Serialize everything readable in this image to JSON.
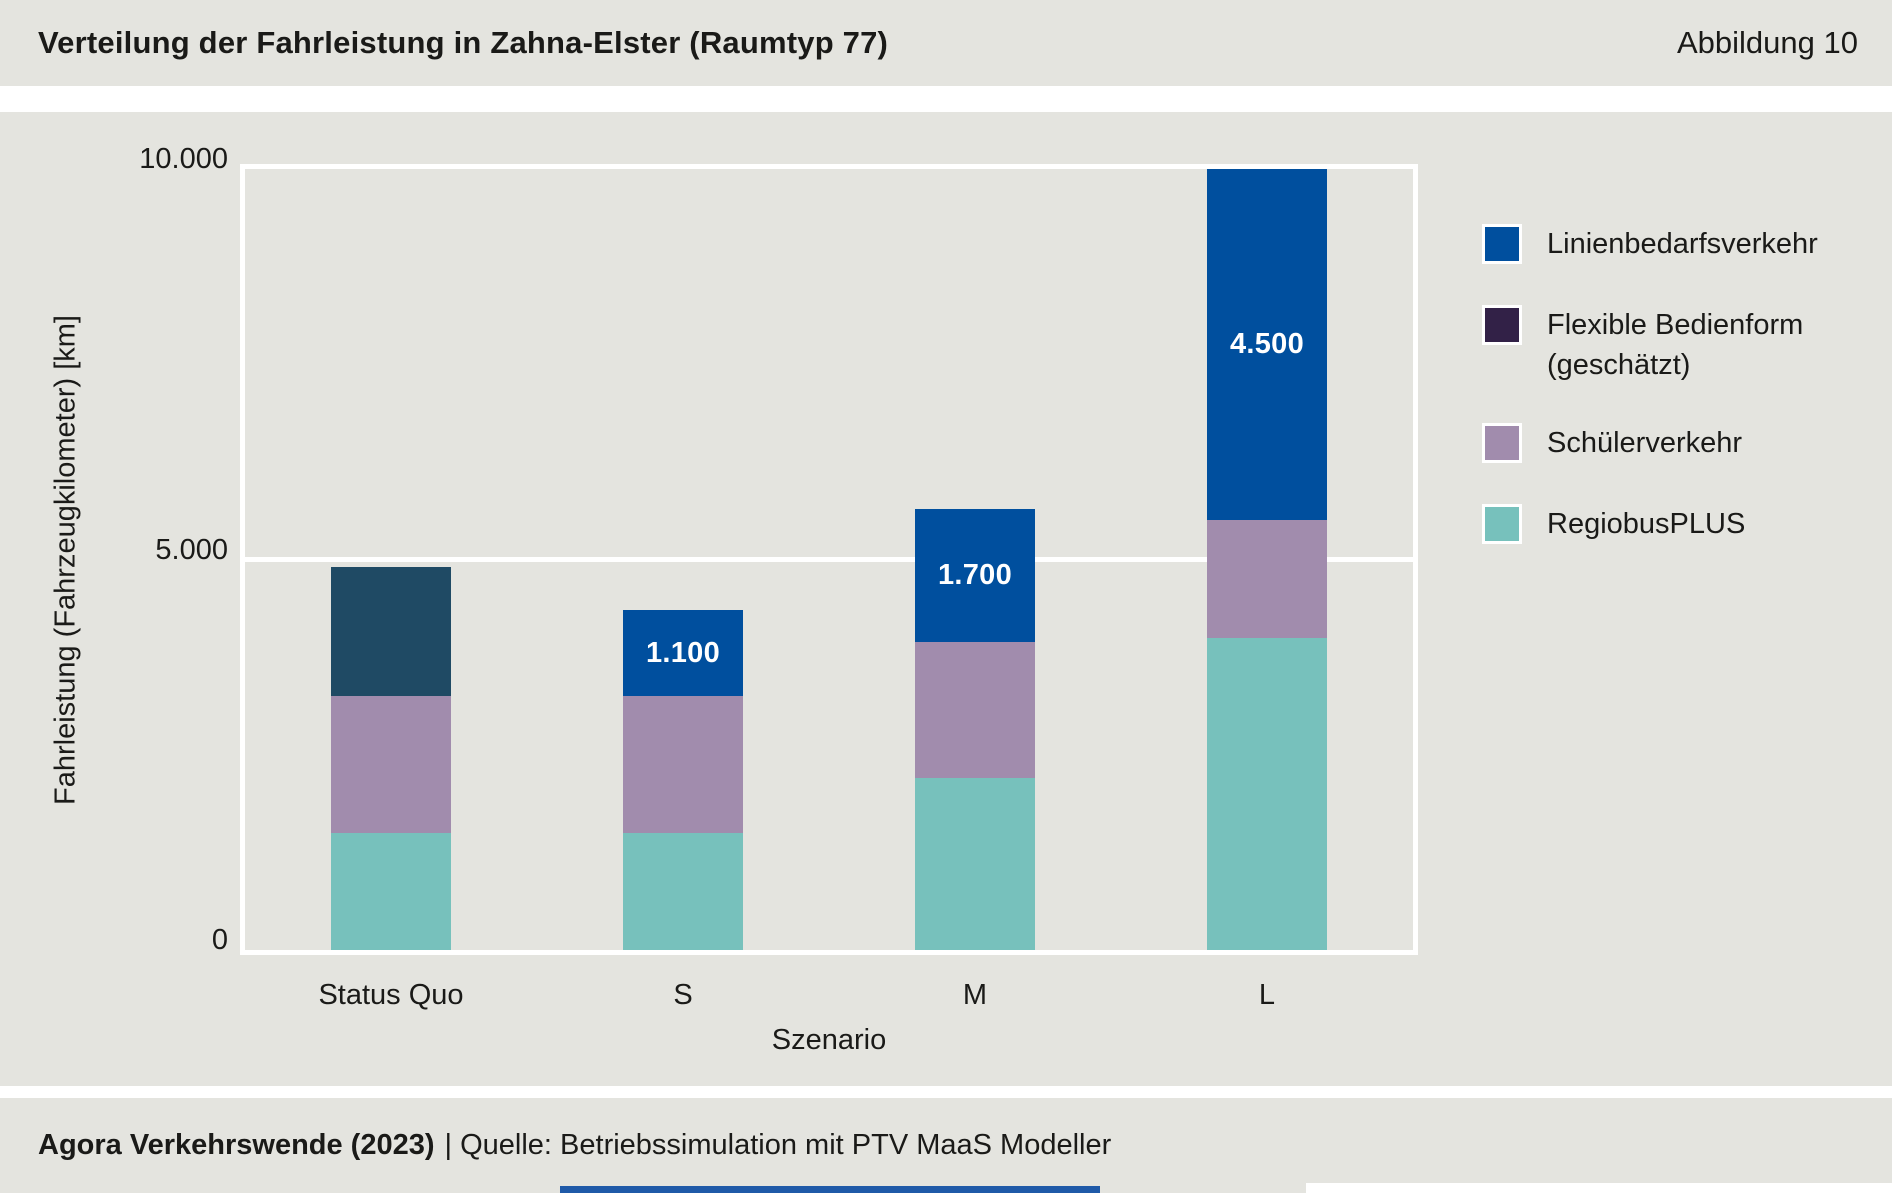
{
  "header": {
    "title": "Verteilung der Fahrleistung in Zahna-Elster (Raumtyp 77)",
    "figure_label": "Abbildung 10"
  },
  "footer": {
    "source_bold": "Agora Verkehrswende (2023)",
    "source_regular": "| Quelle: Betriebssimulation mit PTV MaaS Modeller"
  },
  "colors": {
    "band_bg": "#e4e4df",
    "text": "#1a1a18",
    "grid_white": "#ffffff",
    "blue": "#004f9e",
    "dark_petrol": "#1f4a64",
    "legend_purple": "#322147",
    "mauve": "#a18cad",
    "teal": "#77c1bc",
    "bottom_strip_blue": "#1f5aa8"
  },
  "chart_data": {
    "type": "bar",
    "stacked": true,
    "title": "Verteilung der Fahrleistung in Zahna-Elster (Raumtyp 77)",
    "xlabel": "Szenario",
    "ylabel": "Fahrleistung (Fahrzeugkilometer) [km]",
    "categories": [
      "Status Quo",
      "S",
      "M",
      "L"
    ],
    "series": [
      {
        "name": "RegiobusPLUS",
        "color_key": "teal",
        "values": [
          1500,
          1500,
          2200,
          4000
        ]
      },
      {
        "name": "Schülerverkehr",
        "color_key": "mauve",
        "values": [
          1750,
          1750,
          1750,
          1500
        ]
      },
      {
        "name": "Flexible Bedienform (geschätzt)",
        "color_key": "dark_petrol",
        "values": [
          1650,
          0,
          0,
          0
        ]
      },
      {
        "name": "Linienbedarfsverkehr",
        "color_key": "blue",
        "values": [
          0,
          1100,
          1700,
          4500
        ]
      }
    ],
    "segment_labels": [
      {
        "category_index": 1,
        "series_name": "Linienbedarfsverkehr",
        "text": "1.100"
      },
      {
        "category_index": 2,
        "series_name": "Linienbedarfsverkehr",
        "text": "1.700"
      },
      {
        "category_index": 3,
        "series_name": "Linienbedarfsverkehr",
        "text": "4.500"
      }
    ],
    "ylim": [
      0,
      10000
    ],
    "yticks": [
      {
        "value": 0,
        "label": "0"
      },
      {
        "value": 5000,
        "label": "5.000"
      },
      {
        "value": 10000,
        "label": "10.000"
      }
    ],
    "grid": "horizontal-white-lines",
    "legend_position": "right",
    "legend": [
      {
        "lines": [
          "Linienbedarfsverkehr"
        ],
        "color_key": "blue"
      },
      {
        "lines": [
          "Flexible Bedienform",
          "(geschätzt)"
        ],
        "color_key": "legend_purple"
      },
      {
        "lines": [
          "Schülerverkehr"
        ],
        "color_key": "mauve"
      },
      {
        "lines": [
          "RegiobusPLUS"
        ],
        "color_key": "teal"
      }
    ]
  }
}
